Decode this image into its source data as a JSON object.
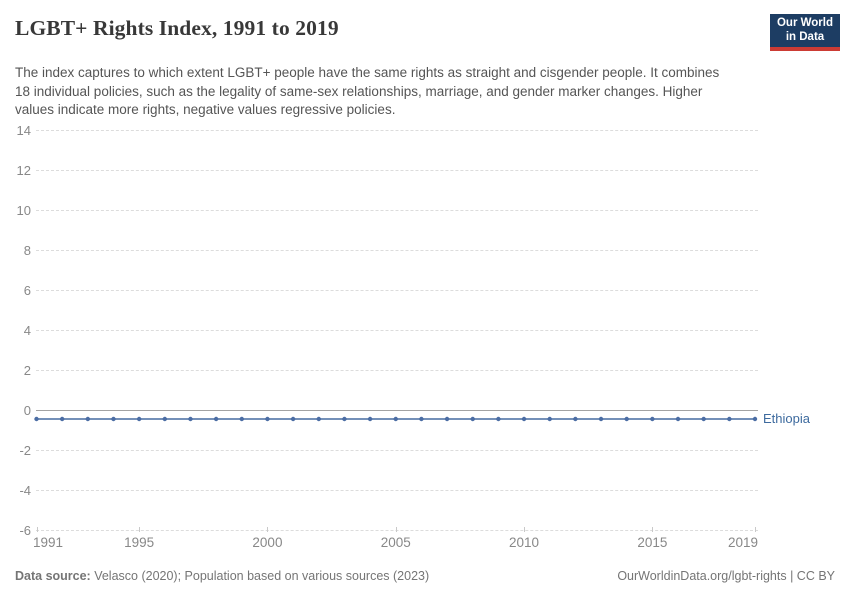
{
  "header": {
    "title": "LGBT+ Rights Index, 1991 to 2019",
    "subtitle": "The index captures to which extent LGBT+ people have the same rights as straight and cisgender people. It combines 18 individual policies, such as the legality of same-sex relationships, marriage, and gender marker changes. Higher values indicate more rights, negative values regressive policies."
  },
  "logo": {
    "line1": "Our World",
    "line2": "in Data"
  },
  "colors": {
    "brand_navy": "#1d3d63",
    "brand_red": "#cc3b34",
    "series_line": "#7490b8",
    "series_dot": "#4b6da4",
    "series_label": "#3d6a9e"
  },
  "chart_data": {
    "type": "line",
    "title": "LGBT+ Rights Index, 1991 to 2019",
    "xlabel": "",
    "ylabel": "",
    "xlim": [
      1991,
      2019
    ],
    "ylim": [
      -6,
      14
    ],
    "yticks": [
      14,
      12,
      10,
      8,
      6,
      4,
      2,
      0,
      -2,
      -4,
      -6
    ],
    "xticks": [
      1991,
      1995,
      2000,
      2005,
      2010,
      2015,
      2019
    ],
    "grid": "horizontal-dashed",
    "zero_line": true,
    "legend_position": "end-of-line",
    "series": [
      {
        "name": "Ethiopia",
        "line_color": "#7490b8",
        "dot_color": "#4b6da4",
        "label_color": "#3d6a9e",
        "x": [
          1991,
          1992,
          1993,
          1994,
          1995,
          1996,
          1997,
          1998,
          1999,
          2000,
          2001,
          2002,
          2003,
          2004,
          2005,
          2006,
          2007,
          2008,
          2009,
          2010,
          2011,
          2012,
          2013,
          2014,
          2015,
          2016,
          2017,
          2018,
          2019
        ],
        "values": [
          -0.45,
          -0.45,
          -0.45,
          -0.45,
          -0.45,
          -0.45,
          -0.45,
          -0.45,
          -0.45,
          -0.45,
          -0.45,
          -0.45,
          -0.45,
          -0.45,
          -0.45,
          -0.45,
          -0.45,
          -0.45,
          -0.45,
          -0.45,
          -0.45,
          -0.45,
          -0.45,
          -0.45,
          -0.45,
          -0.45,
          -0.45,
          -0.45,
          -0.45
        ]
      }
    ]
  },
  "footer": {
    "source_label": "Data source:",
    "source_text": " Velasco (2020); Population based on various sources (2023)",
    "link_text": "OurWorldinData.org/lgbt-rights | CC BY"
  }
}
